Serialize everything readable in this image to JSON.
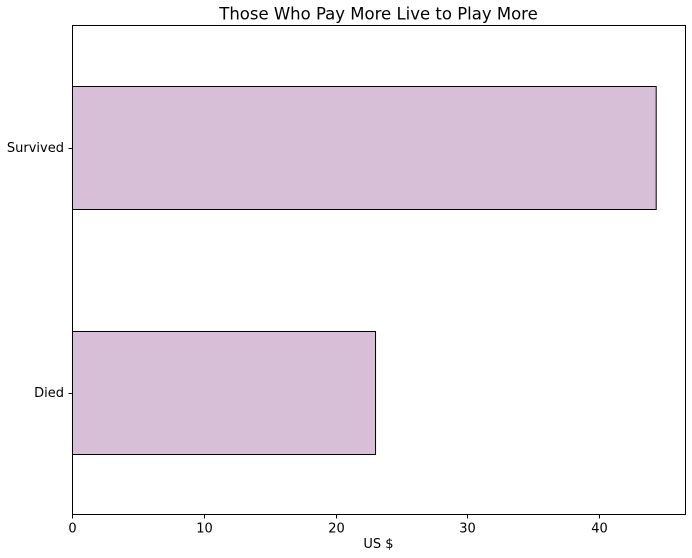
{
  "chart_data": {
    "type": "bar",
    "orientation": "horizontal",
    "title": "Those Who Pay More Live to Play More",
    "xlabel": "US $",
    "ylabel": "",
    "categories": [
      "Survived",
      "Died"
    ],
    "values": [
      44.3,
      23.0
    ],
    "xlim": [
      0,
      46.6
    ],
    "xticks": [
      0,
      10,
      20,
      30,
      40
    ],
    "grid": false,
    "legend": "none",
    "bar_color": "#D8BFD8",
    "edge_color": "#000000"
  }
}
